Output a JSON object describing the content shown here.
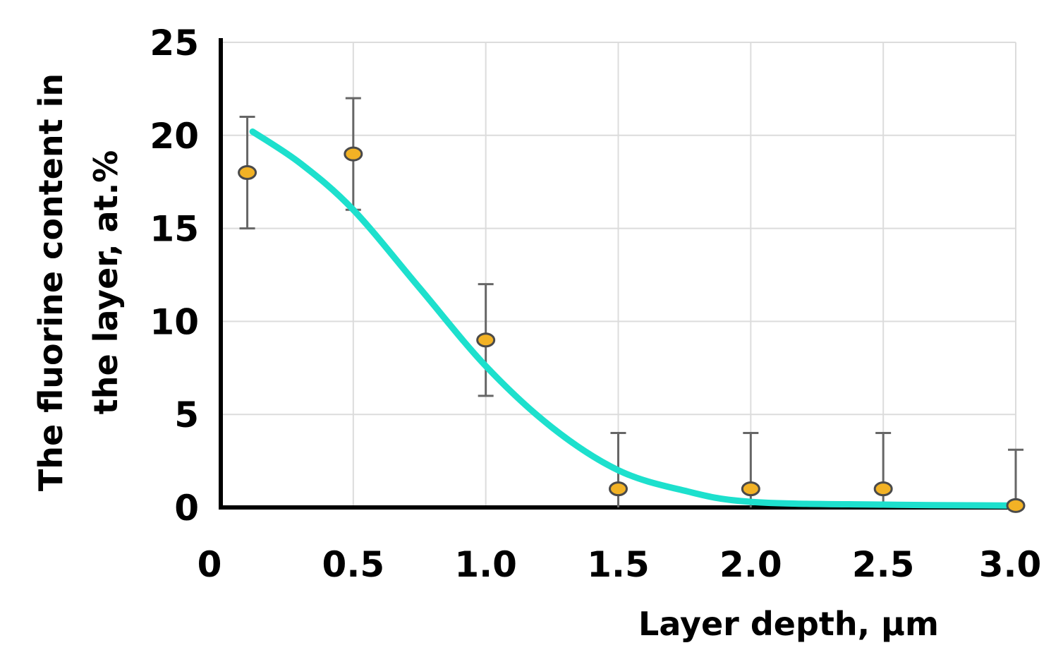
{
  "chart_data": {
    "type": "scatter",
    "title": "",
    "xlabel": "Layer depth, μm",
    "ylabel_line1": "The fluorine content in",
    "ylabel_line2": "the layer, at.%",
    "xlim": [
      0,
      3.0
    ],
    "ylim": [
      0,
      25
    ],
    "x_ticks": [
      0,
      0.5,
      1.0,
      1.5,
      2.0,
      2.5,
      3.0
    ],
    "x_tick_labels": [
      "0",
      "0.5",
      "1.0",
      "1.5",
      "2.0",
      "2.5",
      "3.0"
    ],
    "y_ticks": [
      0,
      5,
      10,
      15,
      20,
      25
    ],
    "y_tick_labels": [
      "0",
      "5",
      "10",
      "15",
      "20",
      "25"
    ],
    "grid": true,
    "series": [
      {
        "type": "scatter",
        "color": "#f2b225",
        "points": [
          {
            "x": 0.1,
            "y": 18,
            "err_low": 15,
            "err_high": 21
          },
          {
            "x": 0.5,
            "y": 19,
            "err_low": 16,
            "err_high": 22
          },
          {
            "x": 1.0,
            "y": 9,
            "err_low": 6,
            "err_high": 12
          },
          {
            "x": 1.5,
            "y": 1,
            "err_low": 0,
            "err_high": 4
          },
          {
            "x": 2.0,
            "y": 1,
            "err_low": 0,
            "err_high": 4
          },
          {
            "x": 2.5,
            "y": 1,
            "err_low": 0,
            "err_high": 4
          },
          {
            "x": 3.0,
            "y": 0.1,
            "err_low": 0,
            "err_high": 3.1
          }
        ]
      },
      {
        "type": "line",
        "color": "#1de0cd",
        "smooth": true,
        "x": [
          0.12,
          0.3,
          0.5,
          0.75,
          1.0,
          1.25,
          1.5,
          1.75,
          2.0,
          2.5,
          3.0
        ],
        "y": [
          20.2,
          18.5,
          16.0,
          11.8,
          7.6,
          4.3,
          2.0,
          0.9,
          0.3,
          0.15,
          0.1
        ]
      }
    ]
  }
}
